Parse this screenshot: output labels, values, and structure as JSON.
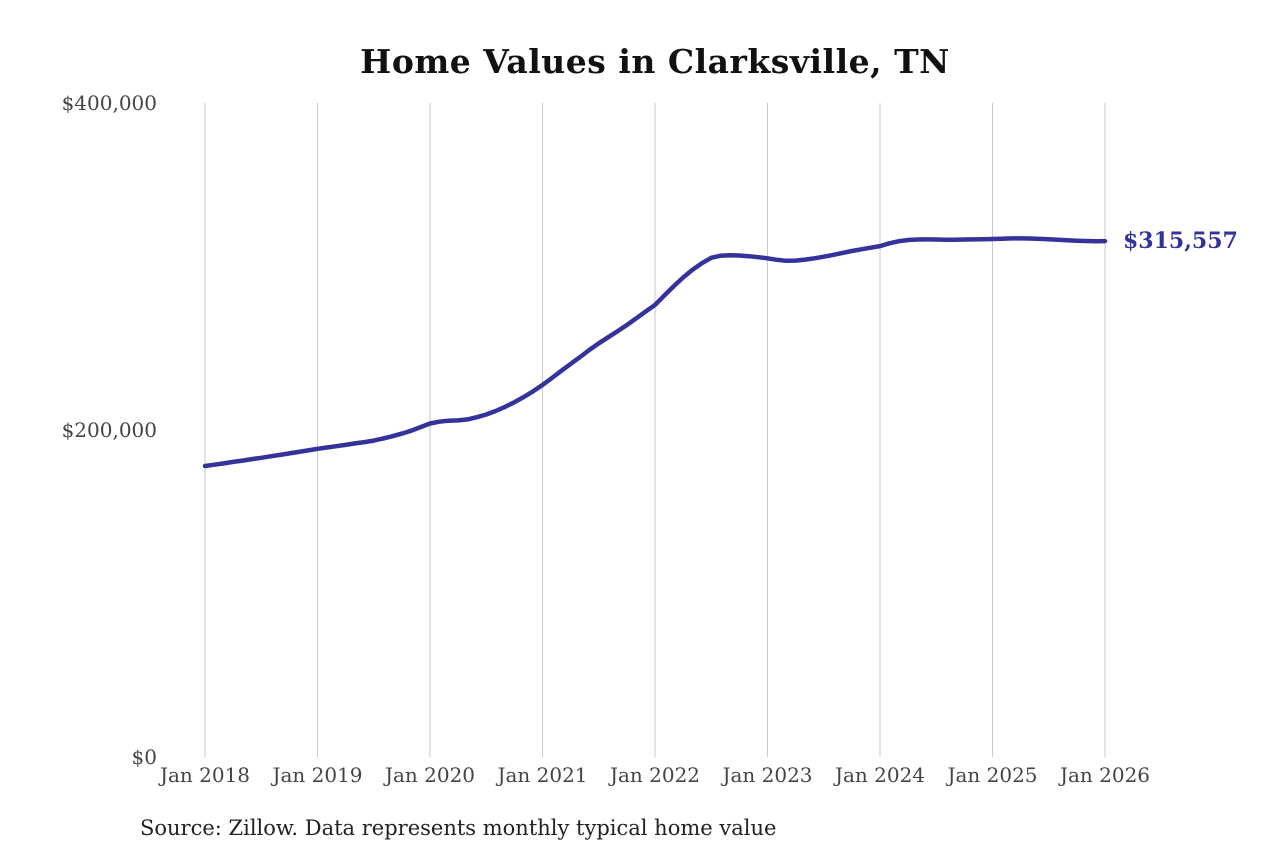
{
  "chart": {
    "title": "Home Values in Clarksville, TN",
    "end_label": "$315,557",
    "source": "Source: Zillow. Data represents monthly typical home value",
    "colors": {
      "line": "#35339b",
      "grid": "#c9c9c9",
      "axis_text": "#454545",
      "title_text": "#111111",
      "end_label_text": "#32329a"
    }
  },
  "chart_data": {
    "type": "line",
    "title": "Home Values in Clarksville, TN",
    "series_name": "Typical home value",
    "x_start": "2018-01",
    "x_interval": "monthly",
    "x_tick_labels": [
      "Jan 2018",
      "Jan 2019",
      "Jan 2020",
      "Jan 2021",
      "Jan 2022",
      "Jan 2023",
      "Jan 2024",
      "Jan 2025",
      "Jan 2026"
    ],
    "y_ticks": [
      {
        "label": "$0",
        "value": 0
      },
      {
        "label": "$200,000",
        "value": 200000
      },
      {
        "label": "$400,000",
        "value": 400000
      }
    ],
    "ylim": [
      0,
      400000
    ],
    "grid": "vertical-only",
    "legend": "none",
    "final_value": 315557,
    "values": [
      178000,
      178800,
      179600,
      180500,
      181300,
      182200,
      183000,
      183900,
      184800,
      185700,
      186600,
      187500,
      188500,
      189300,
      190100,
      190900,
      191800,
      192600,
      193500,
      194800,
      196200,
      197800,
      199600,
      201800,
      204000,
      205100,
      205700,
      205900,
      206500,
      207800,
      209500,
      211600,
      214100,
      217000,
      220200,
      223700,
      227500,
      231800,
      236200,
      240400,
      244600,
      249000,
      253000,
      256700,
      260400,
      264200,
      268300,
      272400,
      276500,
      282300,
      288000,
      293300,
      298000,
      302000,
      305300,
      306600,
      306900,
      306700,
      306300,
      305700,
      305000,
      304100,
      303500,
      303600,
      304200,
      305000,
      306000,
      307100,
      308300,
      309500,
      310500,
      311500,
      312500,
      314200,
      315500,
      316200,
      316500,
      316600,
      316500,
      316400,
      316400,
      316500,
      316600,
      316700,
      316800,
      317000,
      317200,
      317200,
      317100,
      316900,
      316700,
      316400,
      316100,
      315800,
      315600,
      315500,
      315557
    ]
  }
}
